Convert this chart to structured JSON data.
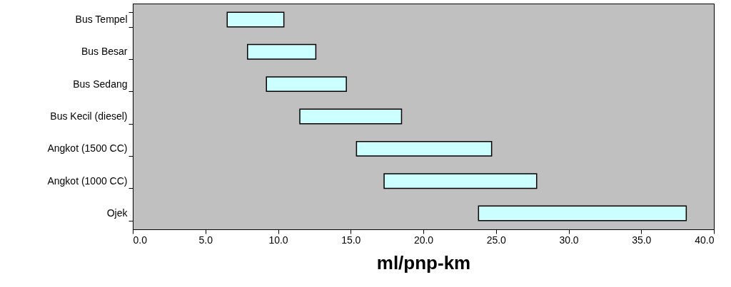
{
  "chart_data": {
    "type": "bar",
    "orientation": "horizontal",
    "xlabel": "ml/pnp-km",
    "categories": [
      "Bus Tempel",
      "Bus Besar",
      "Bus Sedang",
      "Bus Kecil (diesel)",
      "Angkot (1500 CC)",
      "Angkot (1000 CC)",
      "Ojek"
    ],
    "base": [
      6.5,
      7.9,
      9.2,
      11.5,
      15.4,
      17.3,
      23.8
    ],
    "values": [
      3.9,
      4.7,
      5.5,
      7.0,
      9.3,
      10.5,
      14.3
    ],
    "color": "#ccffff",
    "xlim": [
      0,
      40
    ],
    "xticks": [
      {
        "value": 0,
        "label": "0.0"
      },
      {
        "value": 5,
        "label": "5.0"
      },
      {
        "value": 10,
        "label": "10.0"
      },
      {
        "value": 15,
        "label": "15.0"
      },
      {
        "value": 20,
        "label": "20.0"
      },
      {
        "value": 25,
        "label": "25.0"
      },
      {
        "value": 30,
        "label": "30.0"
      },
      {
        "value": 35,
        "label": "35.0"
      },
      {
        "value": 40,
        "label": "40.0"
      }
    ],
    "grid": false
  }
}
